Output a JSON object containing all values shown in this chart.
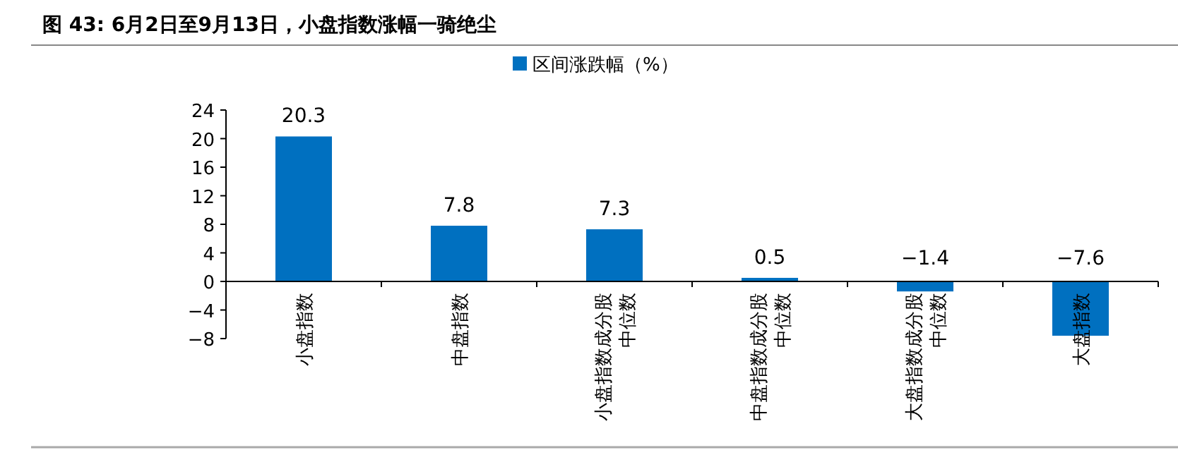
{
  "chart_data": {
    "type": "bar",
    "title": "图 43: 6月2日至9月13日，小盘指数涨幅一骑绝尘",
    "categories": [
      "小盘指数",
      "中盘指数",
      "小盘指数成分股中位数",
      "中盘指数成分股中位数",
      "大盘指数成分股中位数",
      "大盘指数"
    ],
    "series": [
      {
        "name": "区间涨跌幅（%）",
        "color": "#0070c0",
        "values": [
          20.3,
          7.8,
          7.3,
          0.5,
          -1.4,
          -7.6
        ]
      }
    ],
    "ylim": [
      -8,
      24
    ],
    "yticks": [
      -8,
      -4,
      0,
      4,
      8,
      12,
      16,
      20,
      24
    ],
    "data_labels": true,
    "legend": "top",
    "grid": false
  }
}
